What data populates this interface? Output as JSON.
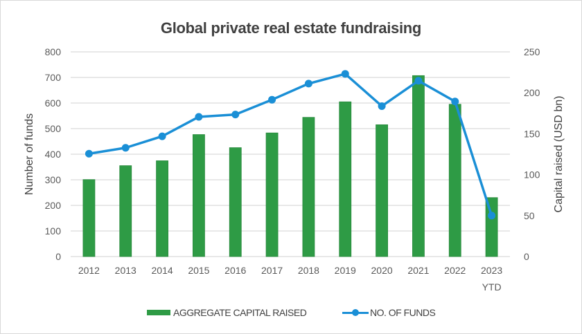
{
  "chart_data": {
    "type": "bar",
    "title": "Global private real estate fundraising",
    "categories": [
      "2012",
      "2013",
      "2014",
      "2015",
      "2016",
      "2017",
      "2018",
      "2019",
      "2020",
      "2021",
      "2022",
      "2023"
    ],
    "category_sublabels": [
      "",
      "",
      "",
      "",
      "",
      "",
      "",
      "",
      "",
      "",
      "",
      "YTD"
    ],
    "series": [
      {
        "name": "AGGREGATE CAPITAL RAISED",
        "type": "bar",
        "axis": "right",
        "color": "#2e9b45",
        "values": [
          94,
          111,
          117,
          149,
          133,
          151,
          170,
          189,
          161,
          221,
          186,
          72
        ]
      },
      {
        "name": "NO. OF FUNDS",
        "type": "line",
        "axis": "left",
        "color": "#1a8fd6",
        "values": [
          402,
          425,
          470,
          546,
          555,
          613,
          676,
          714,
          588,
          687,
          606,
          160
        ]
      }
    ],
    "ylabel": "Number of funds",
    "ylim": [
      0,
      800
    ],
    "yticks": [
      "0",
      "100",
      "200",
      "300",
      "400",
      "500",
      "600",
      "700",
      "800"
    ],
    "y2label": "Capital raised (USD bn)",
    "y2lim": [
      0,
      250
    ],
    "y2ticks": [
      "0",
      "50",
      "100",
      "150",
      "200",
      "250"
    ],
    "grid": true,
    "legend_position": "bottom"
  }
}
